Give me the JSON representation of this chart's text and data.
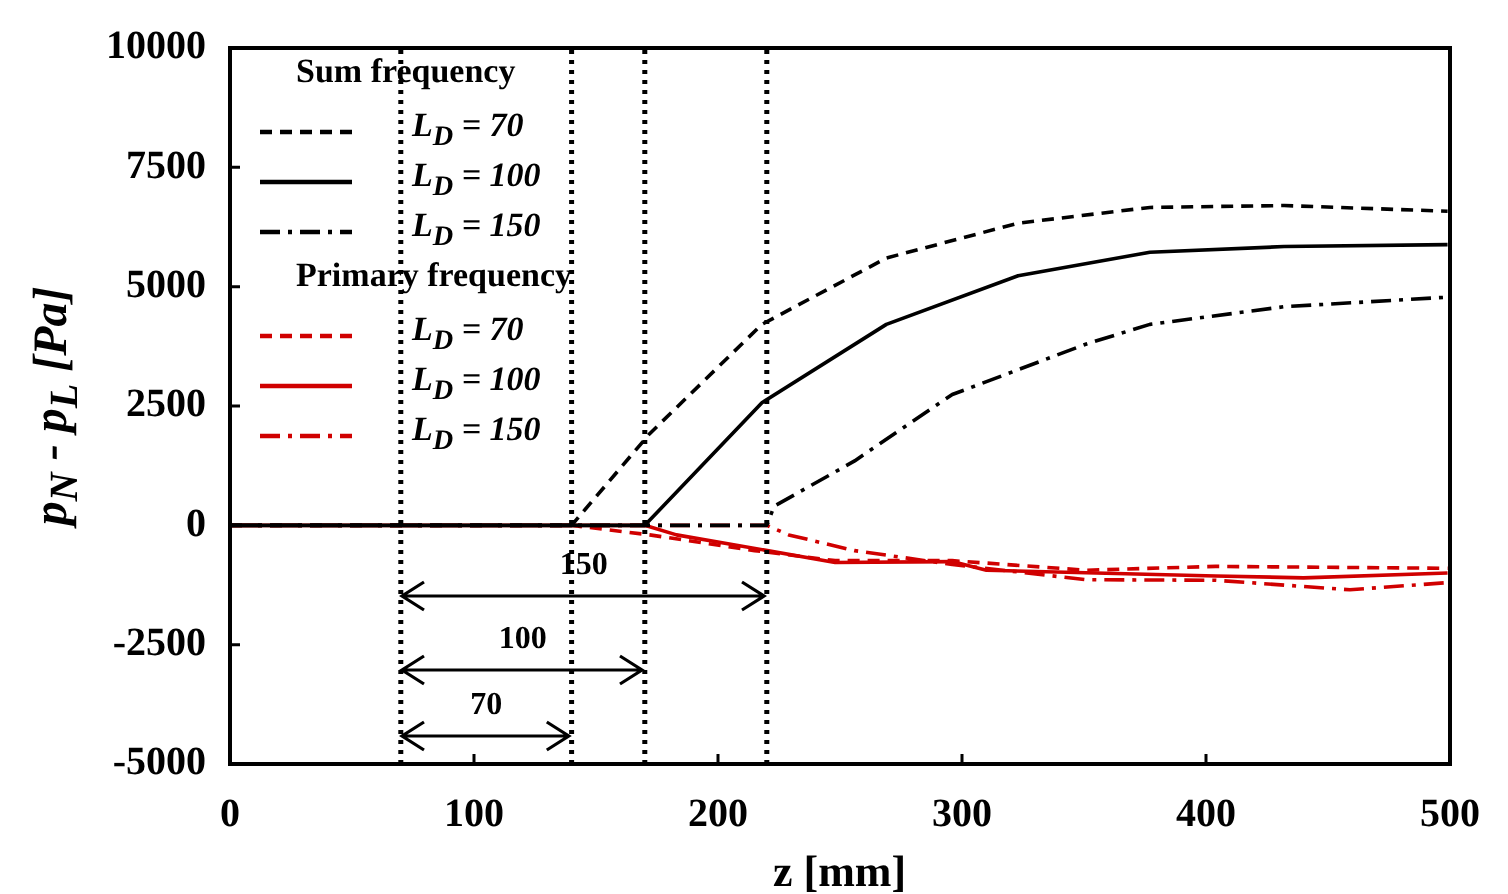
{
  "chart_data": {
    "type": "line",
    "xlabel": "z [mm]",
    "ylabel": "p$_{N}$ - p$_{L}$ [Pa]",
    "xlim": [
      0,
      500
    ],
    "xticks": [
      0,
      100,
      200,
      300,
      400,
      500
    ],
    "ylim": [
      -5000,
      10000
    ],
    "yticks": [
      -5000,
      -2500,
      0,
      2500,
      5000,
      7500,
      10000
    ],
    "grid": false,
    "legend": "top left",
    "marker": "none",
    "annotations": [
      "Sum frequency",
      "Primary frequency",
      "150",
      "100",
      "70"
    ],
    "ref_lines": [
      {
        "axis": "x",
        "value": 70,
        "color": "#000000",
        "line_style": "dotted"
      },
      {
        "axis": "x",
        "value": 140,
        "color": "#000000",
        "line_style": "dotted"
      },
      {
        "axis": "x",
        "value": 170,
        "color": "#000000",
        "line_style": "dotted"
      },
      {
        "axis": "x",
        "value": 220,
        "color": "#000000",
        "line_style": "dotted"
      }
    ],
    "series": [
      {
        "name": "L$_{D}$ = 70",
        "color": "#000000",
        "line_style": "dashed",
        "x": [
          0,
          140,
          172,
          218,
          269,
          323,
          377,
          432,
          499
        ],
        "values": [
          0,
          0,
          1920,
          4210,
          5600,
          6330,
          6660,
          6700,
          6580
        ]
      },
      {
        "name": "L$_{D}$ = 100",
        "color": "#000000",
        "line_style": "solid",
        "x": [
          0,
          170,
          218,
          269,
          323,
          377,
          432,
          499
        ],
        "values": [
          0,
          0,
          2570,
          4210,
          5230,
          5720,
          5840,
          5880
        ]
      },
      {
        "name": "L$_{D}$ = 150",
        "color": "#000000",
        "line_style": "dashdot",
        "x": [
          0,
          220,
          223,
          256,
          296,
          351,
          377,
          432,
          499
        ],
        "values": [
          0,
          0,
          400,
          1350,
          2740,
          3800,
          4210,
          4580,
          4780
        ]
      },
      {
        "name": "L$_{D}$ = 70",
        "color": "#d00000",
        "line_style": "dashed",
        "x": [
          0,
          140,
          172,
          215,
          248,
          296,
          351,
          404,
          499
        ],
        "values": [
          0,
          0,
          -200,
          -530,
          -740,
          -740,
          -940,
          -860,
          -900
        ]
      },
      {
        "name": "L$_{D}$ = 100",
        "color": "#d00000",
        "line_style": "solid",
        "x": [
          0,
          170,
          183,
          207,
          248,
          296,
          310,
          404,
          440,
          499
        ],
        "values": [
          0,
          0,
          -200,
          -410,
          -780,
          -760,
          -940,
          -1060,
          -1100,
          -1000
        ]
      },
      {
        "name": "L$_{D}$ = 150",
        "color": "#d00000",
        "line_style": "dashdot",
        "x": [
          0,
          220,
          229,
          256,
          296,
          351,
          404,
          459,
          499
        ],
        "values": [
          0,
          0,
          -200,
          -530,
          -820,
          -1140,
          -1150,
          -1350,
          -1200
        ]
      }
    ]
  }
}
